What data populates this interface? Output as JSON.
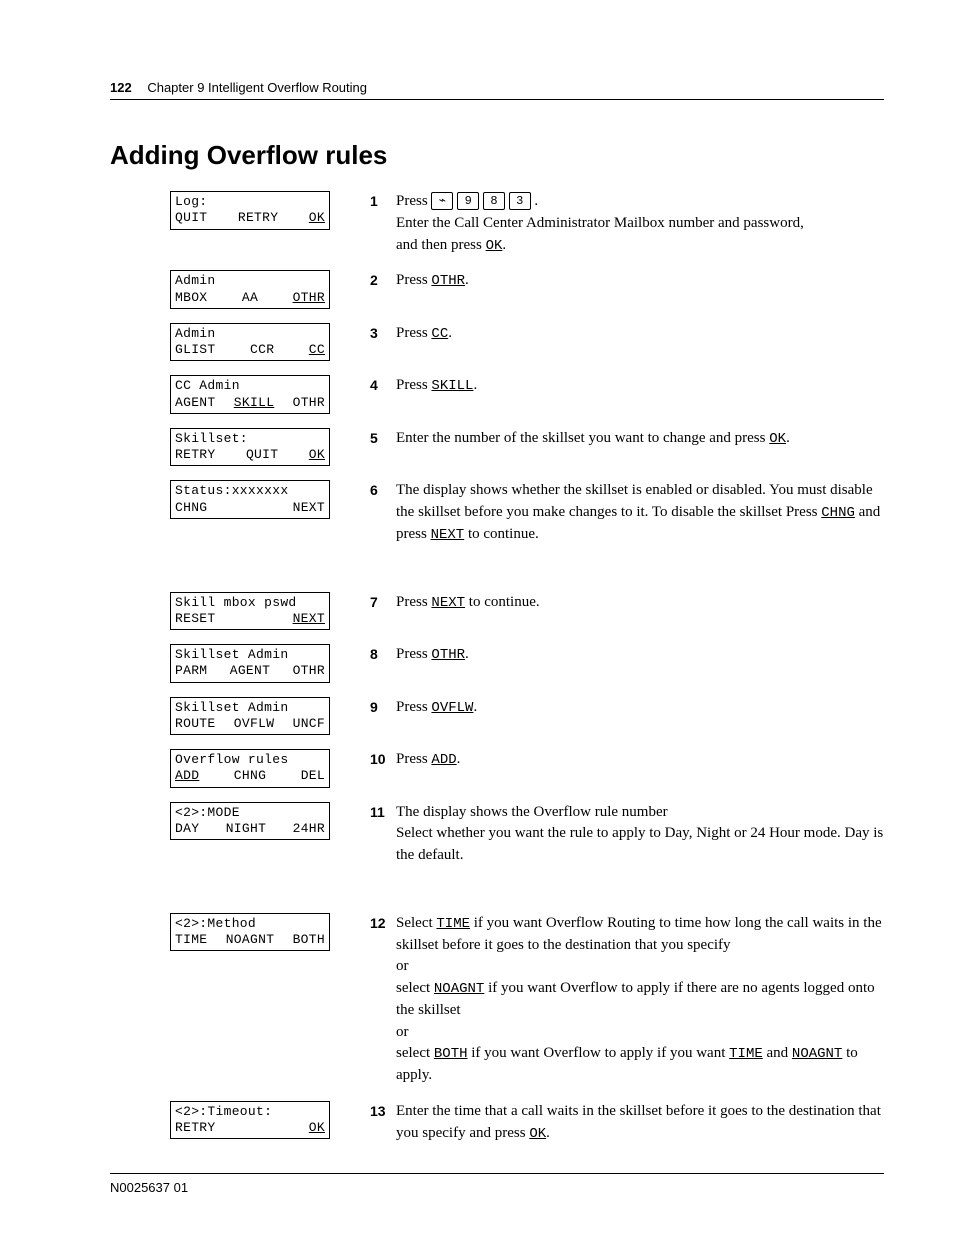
{
  "header": {
    "page_number": "122",
    "chapter": "Chapter 9  Intelligent Overflow Routing"
  },
  "title": "Adding Overflow rules",
  "footer": "N0025637 01",
  "lcds": {
    "log": {
      "top": "Log:",
      "b1": "QUIT",
      "b2": "RETRY",
      "b3": "OK",
      "u1": false,
      "u2": false,
      "u3": true
    },
    "admin1": {
      "top": "Admin",
      "b1": "MBOX",
      "b2": "AA",
      "b3": "OTHR",
      "u1": false,
      "u2": false,
      "u3": true
    },
    "admin2": {
      "top": "Admin",
      "b1": "GLIST",
      "b2": "CCR",
      "b3": "CC",
      "u1": false,
      "u2": false,
      "u3": true
    },
    "ccadmin": {
      "top": "CC Admin",
      "b1": "AGENT",
      "b2": "SKILL",
      "b3": "OTHR",
      "u1": false,
      "u2": true,
      "u3": false
    },
    "skillset": {
      "top": "Skillset:",
      "b1": "RETRY",
      "b2": "QUIT",
      "b3": "OK",
      "u1": false,
      "u2": false,
      "u3": true
    },
    "status": {
      "top": "Status:xxxxxxx",
      "b1": "CHNG",
      "b2": "",
      "b3": "NEXT",
      "u1": false,
      "u2": false,
      "u3": false
    },
    "pswd": {
      "top": "Skill mbox pswd",
      "b1": "RESET",
      "b2": "",
      "b3": "NEXT",
      "u1": false,
      "u2": false,
      "u3": true
    },
    "sadmin1": {
      "top": "Skillset Admin",
      "b1": "PARM",
      "b2": "AGENT",
      "b3": "OTHR",
      "u1": false,
      "u2": false,
      "u3": false
    },
    "sadmin2": {
      "top": "Skillset Admin",
      "b1": "ROUTE",
      "b2": "OVFLW",
      "b3": "UNCF",
      "u1": false,
      "u2": false,
      "u3": false
    },
    "ovrules": {
      "top": "Overflow rules",
      "b1": "ADD",
      "b2": "CHNG",
      "b3": "DEL",
      "u1": true,
      "u2": false,
      "u3": false
    },
    "mode": {
      "top": "<2>:MODE",
      "b1": "DAY",
      "b2": "NIGHT",
      "b3": "24HR",
      "u1": false,
      "u2": false,
      "u3": false
    },
    "method": {
      "top": "<2>:Method",
      "b1": "TIME",
      "b2": "NOAGNT",
      "b3": "BOTH",
      "u1": false,
      "u2": false,
      "u3": false
    },
    "timeout": {
      "top": "<2>:Timeout:",
      "b1": "RETRY",
      "b2": "",
      "b3": "OK",
      "u1": false,
      "u2": false,
      "u3": true
    }
  },
  "steps": {
    "s1": {
      "num": "1",
      "pre": "Press ",
      "keys": [
        "⌁",
        "9",
        "8",
        "3"
      ],
      "post1": ".",
      "line2": "Enter the Call Center Administrator Mailbox number and password,",
      "line3a": "and then press ",
      "line3k": "OK",
      "line3b": "."
    },
    "s2": {
      "num": "2",
      "a": "Press ",
      "k": "OTHR",
      "b": "."
    },
    "s3": {
      "num": "3",
      "a": "Press ",
      "k": "CC",
      "b": "."
    },
    "s4": {
      "num": "4",
      "a": "Press  ",
      "k": "SKILL",
      "b": "."
    },
    "s5": {
      "num": "5",
      "a": "Enter the number of the skillset you want to change and press ",
      "k": "OK",
      "b": "."
    },
    "s6": {
      "num": "6",
      "t1": "The display shows whether the skillset is enabled or disabled. You must disable the skillset before you make changes to it. To disable the skillset Press ",
      "k1": "CHNG",
      "t2": " and press ",
      "k2": "NEXT",
      "t3": " to continue."
    },
    "s7": {
      "num": "7",
      "a": "Press ",
      "k": "NEXT",
      "b": " to continue."
    },
    "s8": {
      "num": "8",
      "a": "Press ",
      "k": "OTHR",
      "b": "."
    },
    "s9": {
      "num": "9",
      "a": "Press ",
      "k": "OVFLW",
      "b": "."
    },
    "s10": {
      "num": "10",
      "a": "Press ",
      "k": "ADD",
      "b": "."
    },
    "s11": {
      "num": "11",
      "t1": "The display shows the Overflow rule number",
      "t2": "Select whether you want the rule to apply to Day, Night or 24 Hour mode. Day is the default."
    },
    "s12": {
      "num": "12",
      "p1a": "Select ",
      "p1k": "TIME",
      "p1b": " if you want Overflow Routing to time how long the call waits in the skillset before it goes to the destination that you specify",
      "or": "or",
      "p2a": "select ",
      "p2k": "NOAGNT",
      "p2b": " if you want Overflow to apply if there are no agents logged onto the skillset",
      "p3a": "select ",
      "p3k": "BOTH",
      "p3b": " if you want Overflow to apply if you want ",
      "p3k2": "TIME",
      "p3c": " and ",
      "p3k3": "NOAGNT",
      "p3d": " to apply."
    },
    "s13": {
      "num": "13",
      "a": "Enter the time that a call waits in the skillset before it goes to the destination that you specify and press ",
      "k": "OK",
      "b": "."
    }
  }
}
